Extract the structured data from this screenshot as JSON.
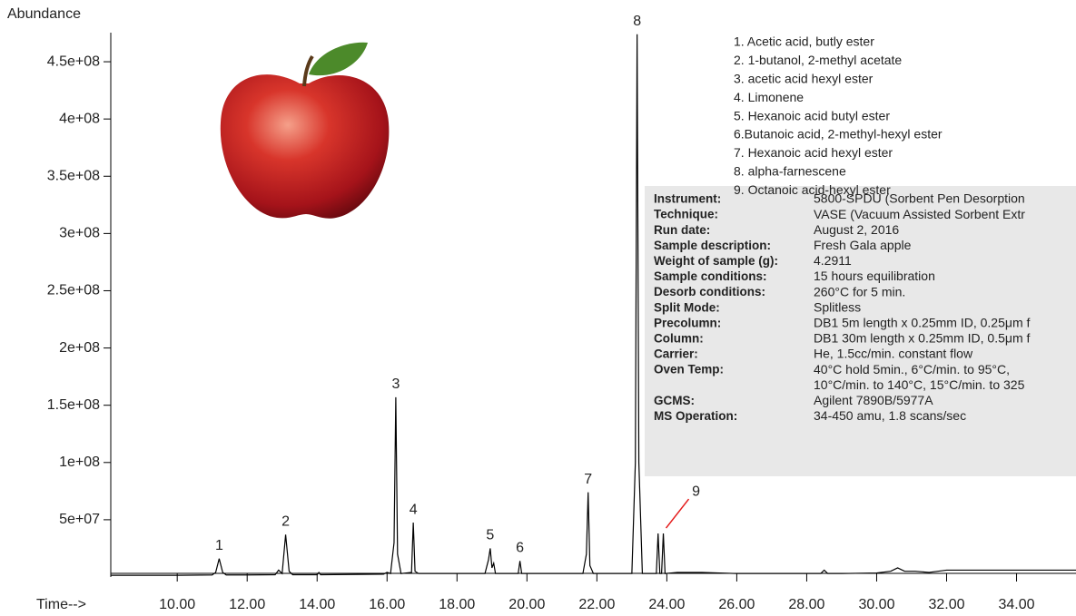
{
  "chart_data": {
    "type": "line",
    "ylabel": "Abundance",
    "xlabel": "Time-->",
    "xlim": [
      8.1,
      35.7
    ],
    "ylim": [
      0,
      475000000
    ],
    "xticks": [
      {
        "value": 10,
        "label": "10.00"
      },
      {
        "value": 12,
        "label": "12.00"
      },
      {
        "value": 14,
        "label": "14.00"
      },
      {
        "value": 16,
        "label": "16.00"
      },
      {
        "value": 18,
        "label": "18.00"
      },
      {
        "value": 20,
        "label": "20.00"
      },
      {
        "value": 22,
        "label": "22.00"
      },
      {
        "value": 24,
        "label": "24.00"
      },
      {
        "value": 26,
        "label": "26.00"
      },
      {
        "value": 28,
        "label": "28.00"
      },
      {
        "value": 30,
        "label": "30.00"
      },
      {
        "value": 32,
        "label": "32.00"
      },
      {
        "value": 34,
        "label": "34.00"
      }
    ],
    "yticks": [
      {
        "value": 50000000,
        "label": "5e+07"
      },
      {
        "value": 100000000,
        "label": "1e+08"
      },
      {
        "value": 150000000,
        "label": "1.5e+08"
      },
      {
        "value": 200000000,
        "label": "2e+08"
      },
      {
        "value": 250000000,
        "label": "2.5e+08"
      },
      {
        "value": 300000000,
        "label": "3e+08"
      },
      {
        "value": 350000000,
        "label": "3.5e+08"
      },
      {
        "value": 400000000,
        "label": "4e+08"
      },
      {
        "value": 450000000,
        "label": "4.5e+08"
      }
    ],
    "series": [
      {
        "color": "#000000",
        "x": [
          8.1,
          9,
          10,
          11,
          11.1,
          11.2,
          11.3,
          11.4,
          12,
          12.8,
          12.9,
          13.0,
          13.1,
          13.2,
          13.3,
          14,
          14.05,
          14.1,
          15.9,
          16.0,
          16.1,
          16.2,
          16.25,
          16.3,
          16.4,
          16.7,
          16.75,
          16.8,
          16.9,
          17.5,
          18.8,
          18.9,
          18.95,
          19.0,
          19.05,
          19.1,
          19.75,
          19.8,
          19.85,
          21.6,
          21.7,
          21.75,
          21.8,
          21.9,
          23.0,
          23.1,
          23.15,
          23.2,
          23.3,
          23.7,
          23.75,
          23.8,
          23.85,
          23.9,
          23.95,
          24.3,
          25,
          26,
          28.4,
          28.5,
          28.6,
          29,
          30,
          30.4,
          30.6,
          30.8,
          31.1,
          31.5,
          32,
          35.7
        ],
        "values": [
          1500000,
          1500000,
          1500000,
          1800000,
          4000000,
          16000000,
          4000000,
          1800000,
          1800000,
          2000000,
          6000000,
          3000000,
          37000000,
          5000000,
          2000000,
          2000000,
          4000000,
          2000000,
          2500000,
          4000000,
          3000000,
          30000000,
          157000000,
          20000000,
          3000000,
          4000000,
          47500000,
          5000000,
          3000000,
          3000000,
          3000000,
          15000000,
          25000000,
          8000000,
          12000000,
          3000000,
          3000000,
          14000000,
          3000000,
          3000000,
          20000000,
          74000000,
          10000000,
          3000000,
          3000000,
          100000000,
          474000000,
          100000000,
          3000000,
          3000000,
          38000000,
          3000000,
          3000000,
          38000000,
          3000000,
          4000000,
          4000000,
          3000000,
          3000000,
          6000000,
          3000000,
          3000000,
          3500000,
          5000000,
          8000000,
          5000000,
          5000000,
          4000000,
          6000000,
          6000000
        ]
      }
    ],
    "peaks": [
      {
        "label": "1",
        "time": 11.2
      },
      {
        "label": "2",
        "time": 13.1
      },
      {
        "label": "3",
        "time": 16.25
      },
      {
        "label": "4",
        "time": 16.75
      },
      {
        "label": "5",
        "time": 18.95
      },
      {
        "label": "6",
        "time": 19.8
      },
      {
        "label": "7",
        "time": 21.75
      },
      {
        "label": "8",
        "time": 23.15
      },
      {
        "label": "9",
        "time": 23.9,
        "pointer_color": "#e41a1a"
      }
    ],
    "compounds": [
      "1. Acetic acid, butly ester",
      "2. 1-butanol, 2-methyl acetate",
      "3. acetic acid hexyl ester",
      "4. Limonene",
      "5. Hexanoic acid butyl ester",
      "6.Butanoic acid, 2-methyl-hexyl ester",
      "7. Hexanoic acid hexyl ester",
      "8. alpha-farnescene",
      "9. Octanoic acid-hexyl ester"
    ],
    "info": [
      {
        "key": "Instrument:",
        "lines": [
          "5800-SPDU (Sorbent Pen Desorption"
        ]
      },
      {
        "key": "Technique:",
        "lines": [
          "VASE (Vacuum Assisted Sorbent Extr"
        ]
      },
      {
        "key": "Run date:",
        "lines": [
          "August 2, 2016"
        ]
      },
      {
        "key": "Sample description:",
        "lines": [
          "Fresh Gala apple"
        ]
      },
      {
        "key": "Weight of sample (g):",
        "lines": [
          "4.2911"
        ]
      },
      {
        "key": "Sample conditions:",
        "lines": [
          "15 hours equilibration"
        ]
      },
      {
        "key": "Desorb conditions:",
        "lines": [
          "260°C for 5 min."
        ]
      },
      {
        "key": "Split Mode:",
        "lines": [
          "Splitless"
        ]
      },
      {
        "key": "Precolumn:",
        "lines": [
          "DB1 5m length x 0.25mm ID, 0.25μm f"
        ]
      },
      {
        "key": "Column:",
        "lines": [
          "DB1 30m length x 0.25mm ID, 0.5μm f"
        ]
      },
      {
        "key": "Carrier:",
        "lines": [
          "He, 1.5cc/min. constant flow"
        ]
      },
      {
        "key": "Oven Temp:",
        "lines": [
          "40°C hold 5min., 6°C/min. to 95°C,",
          "10°C/min. to 140°C, 15°C/min. to 325"
        ]
      },
      {
        "key": "GCMS:",
        "lines": [
          "Agilent 7890B/5977A"
        ]
      },
      {
        "key": "MS Operation:",
        "lines": [
          "34-450 amu, 1.8 scans/sec"
        ]
      }
    ]
  }
}
